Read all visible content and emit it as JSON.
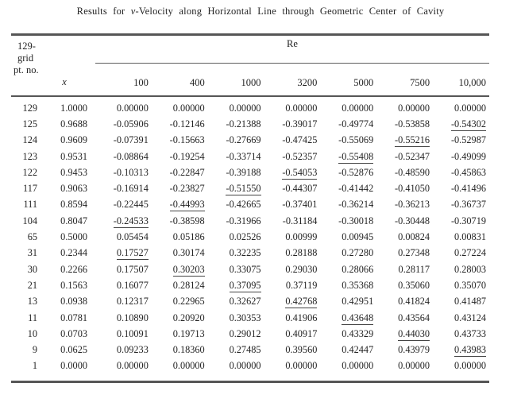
{
  "title": {
    "prefix": "Results for ",
    "var": "v",
    "suffix": "-Velocity along Horizontal Line through Geometric Center of Cavity"
  },
  "table": {
    "corner_header_lines": [
      "129-",
      "grid",
      "pt. no."
    ],
    "x_header": "x",
    "re_label": "Re",
    "re_columns": [
      "100",
      "400",
      "1000",
      "3200",
      "5000",
      "7500",
      "10,000"
    ],
    "rows": [
      {
        "pt": "129",
        "x": "1.0000",
        "values": [
          "0.00000",
          "0.00000",
          "0.00000",
          "0.00000",
          "0.00000",
          "0.00000",
          "0.00000"
        ],
        "underline": -1
      },
      {
        "pt": "125",
        "x": "0.9688",
        "values": [
          "-0.05906",
          "-0.12146",
          "-0.21388",
          "-0.39017",
          "-0.49774",
          "-0.53858",
          "-0.54302"
        ],
        "underline": 6
      },
      {
        "pt": "124",
        "x": "0.9609",
        "values": [
          "-0.07391",
          "-0.15663",
          "-0.27669",
          "-0.47425",
          "-0.55069",
          "-0.55216",
          "-0.52987"
        ],
        "underline": 5
      },
      {
        "pt": "123",
        "x": "0.9531",
        "values": [
          "-0.08864",
          "-0.19254",
          "-0.33714",
          "-0.52357",
          "-0.55408",
          "-0.52347",
          "-0.49099"
        ],
        "underline": 4
      },
      {
        "pt": "122",
        "x": "0.9453",
        "values": [
          "-0.10313",
          "-0.22847",
          "-0.39188",
          "-0.54053",
          "-0.52876",
          "-0.48590",
          "-0.45863"
        ],
        "underline": 3
      },
      {
        "pt": "117",
        "x": "0.9063",
        "values": [
          "-0.16914",
          "-0.23827",
          "-0.51550",
          "-0.44307",
          "-0.41442",
          "-0.41050",
          "-0.41496"
        ],
        "underline": 2
      },
      {
        "pt": "111",
        "x": "0.8594",
        "values": [
          "-0.22445",
          "-0.44993",
          "-0.42665",
          "-0.37401",
          "-0.36214",
          "-0.36213",
          "-0.36737"
        ],
        "underline": 1
      },
      {
        "pt": "104",
        "x": "0.8047",
        "values": [
          "-0.24533",
          "-0.38598",
          "-0.31966",
          "-0.31184",
          "-0.30018",
          "-0.30448",
          "-0.30719"
        ],
        "underline": 0
      },
      {
        "pt": "65",
        "x": "0.5000",
        "values": [
          "0.05454",
          "0.05186",
          "0.02526",
          "0.00999",
          "0.00945",
          "0.00824",
          "0.00831"
        ],
        "underline": -1
      },
      {
        "pt": "31",
        "x": "0.2344",
        "values": [
          "0.17527",
          "0.30174",
          "0.32235",
          "0.28188",
          "0.27280",
          "0.27348",
          "0.27224"
        ],
        "underline": 0
      },
      {
        "pt": "30",
        "x": "0.2266",
        "values": [
          "0.17507",
          "0.30203",
          "0.33075",
          "0.29030",
          "0.28066",
          "0.28117",
          "0.28003"
        ],
        "underline": 1
      },
      {
        "pt": "21",
        "x": "0.1563",
        "values": [
          "0.16077",
          "0.28124",
          "0.37095",
          "0.37119",
          "0.35368",
          "0.35060",
          "0.35070"
        ],
        "underline": 2
      },
      {
        "pt": "13",
        "x": "0.0938",
        "values": [
          "0.12317",
          "0.22965",
          "0.32627",
          "0.42768",
          "0.42951",
          "0.41824",
          "0.41487"
        ],
        "underline": 3
      },
      {
        "pt": "11",
        "x": "0.0781",
        "values": [
          "0.10890",
          "0.20920",
          "0.30353",
          "0.41906",
          "0.43648",
          "0.43564",
          "0.43124"
        ],
        "underline": 4
      },
      {
        "pt": "10",
        "x": "0.0703",
        "values": [
          "0.10091",
          "0.19713",
          "0.29012",
          "0.40917",
          "0.43329",
          "0.44030",
          "0.43733"
        ],
        "underline": 5
      },
      {
        "pt": "9",
        "x": "0.0625",
        "values": [
          "0.09233",
          "0.18360",
          "0.27485",
          "0.39560",
          "0.42447",
          "0.43979",
          "0.43983"
        ],
        "underline": 6
      },
      {
        "pt": "1",
        "x": "0.0000",
        "values": [
          "0.00000",
          "0.00000",
          "0.00000",
          "0.00000",
          "0.00000",
          "0.00000",
          "0.00000"
        ],
        "underline": -1
      }
    ]
  },
  "colors": {
    "rule": "#565656",
    "text": "#242424",
    "background": "#ffffff"
  }
}
